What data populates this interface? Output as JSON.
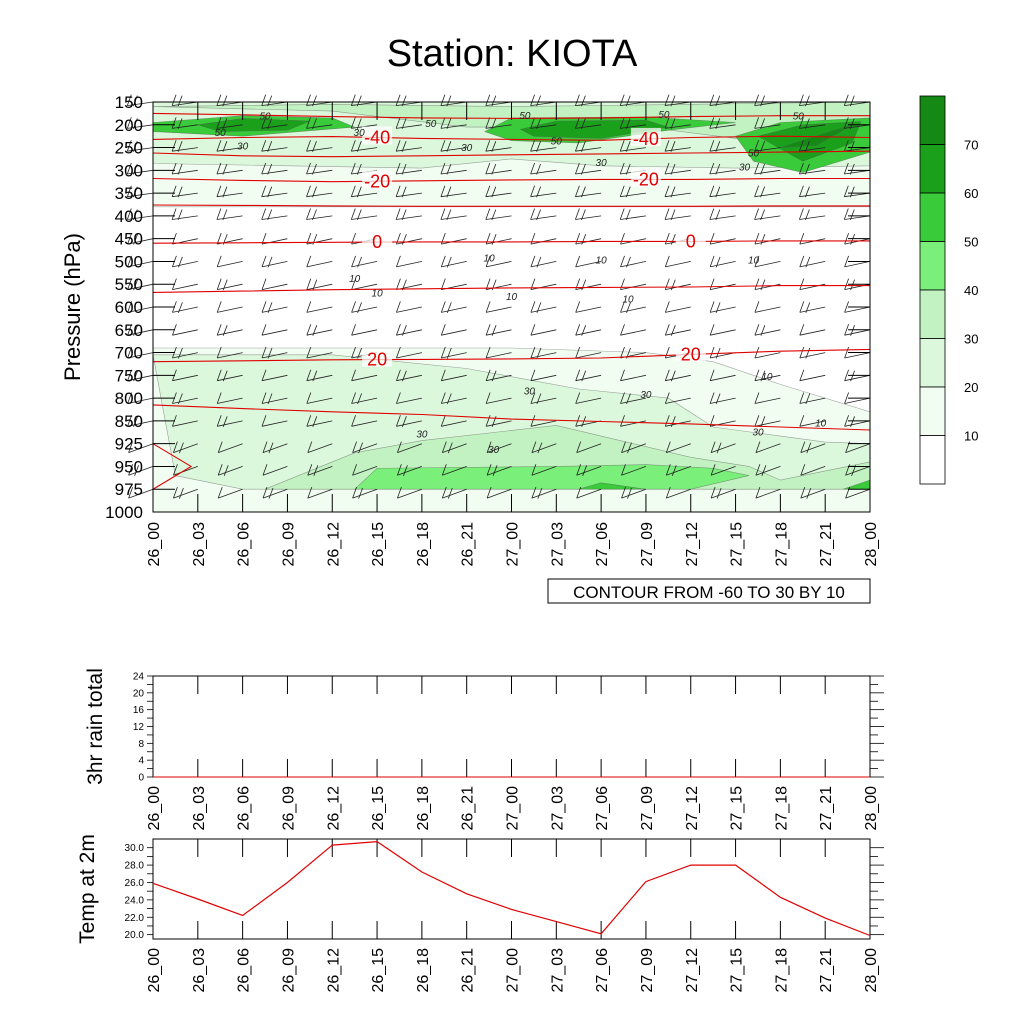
{
  "title": "Station: KIOTA",
  "time_labels": [
    "26_00",
    "26_03",
    "26_06",
    "26_09",
    "26_12",
    "26_15",
    "26_18",
    "26_21",
    "27_00",
    "27_03",
    "27_06",
    "27_09",
    "27_12",
    "27_15",
    "27_18",
    "27_21",
    "28_00"
  ],
  "chart_data": [
    {
      "type": "heatmap",
      "ylabel": "Pressure (hPa)",
      "pressure_levels": [
        150,
        200,
        250,
        300,
        350,
        400,
        450,
        500,
        550,
        600,
        650,
        700,
        750,
        800,
        850,
        925,
        950,
        975,
        1000
      ],
      "contour_info": "CONTOUR FROM -60 TO 30 BY 10",
      "shading_scale": {
        "levels": [
          10,
          20,
          30,
          40,
          50,
          60,
          70
        ],
        "colors": [
          "#ffffff",
          "#f2fdf2",
          "#dcf8dc",
          "#c2f2c2",
          "#7af07a",
          "#3acb3a",
          "#1aa01a",
          "#148a14"
        ]
      },
      "temperature_contour_labels": [
        {
          "value": "-40",
          "times": [
            "26_15",
            "27_09"
          ]
        },
        {
          "value": "-20",
          "times": [
            "26_15",
            "27_09"
          ]
        },
        {
          "value": "0",
          "times": [
            "26_15",
            "27_12"
          ]
        },
        {
          "value": "20",
          "times": [
            "26_15",
            "27_12"
          ]
        }
      ],
      "temperature_contours": [
        {
          "value": -50,
          "p": [
            175,
            178,
            182,
            185,
            186,
            185,
            182,
            180,
            180
          ]
        },
        {
          "value": -40,
          "p": [
            232,
            228,
            226,
            230,
            232,
            234,
            228,
            225,
            228
          ]
        },
        {
          "value": -30,
          "p": [
            262,
            268,
            270,
            268,
            266,
            264,
            262,
            260,
            258
          ]
        },
        {
          "value": -20,
          "p": [
            318,
            322,
            325,
            323,
            321,
            320,
            320,
            318,
            318
          ]
        },
        {
          "value": -10,
          "p": [
            376,
            377,
            378,
            379,
            379,
            379,
            379,
            378,
            378
          ]
        },
        {
          "value": 0,
          "p": [
            460,
            459,
            458,
            457,
            457,
            456,
            456,
            455,
            455
          ]
        },
        {
          "value": 10,
          "p": [
            568,
            565,
            562,
            560,
            558,
            557,
            556,
            553,
            553
          ]
        },
        {
          "value": 20,
          "p": [
            720,
            718,
            716,
            715,
            714,
            712,
            704,
            697,
            693
          ]
        },
        {
          "value": 30,
          "p": [
            815,
            823,
            830,
            836,
            846,
            852,
            860,
            870,
            880
          ]
        }
      ],
      "wind_speed_contour_labels": [
        "10",
        "30",
        "50"
      ],
      "wind_speed_regions": [
        {
          "level": 10,
          "poly": [
            [
              0,
              165
            ],
            [
              16,
              168
            ],
            [
              16,
              380
            ],
            [
              0,
              380
            ]
          ]
        },
        {
          "level": 20,
          "poly": [
            [
              0,
              150
            ],
            [
              16,
              150
            ],
            [
              16,
              290
            ],
            [
              13,
              295
            ],
            [
              10,
              290
            ],
            [
              8,
              275
            ],
            [
              6,
              295
            ],
            [
              3,
              290
            ],
            [
              0,
              285
            ]
          ]
        },
        {
          "level": 30,
          "poly": [
            [
              0,
              160
            ],
            [
              4,
              170
            ],
            [
              7,
              205
            ],
            [
              11,
              205
            ],
            [
              13,
              230
            ],
            [
              15,
              215
            ],
            [
              16,
              210
            ],
            [
              16,
              150
            ],
            [
              12,
              155
            ],
            [
              8,
              160
            ],
            [
              4,
              155
            ]
          ]
        },
        {
          "level": 50,
          "poly": [
            [
              0,
              195
            ],
            [
              2,
              180
            ],
            [
              4,
              185
            ],
            [
              4.5,
              205
            ],
            [
              2,
              225
            ],
            [
              0,
              215
            ]
          ]
        },
        {
          "level": 50,
          "poly": [
            [
              7.4,
              215
            ],
            [
              8,
              185
            ],
            [
              11,
              183
            ],
            [
              13,
              195
            ],
            [
              11.5,
              212
            ],
            [
              9.5,
              240
            ],
            [
              8,
              235
            ]
          ]
        },
        {
          "level": 50,
          "poly": [
            [
              13,
              225
            ],
            [
              14,
              195
            ],
            [
              16,
              185
            ],
            [
              16,
              260
            ],
            [
              14.5,
              305
            ],
            [
              13.4,
              280
            ]
          ]
        },
        {
          "level": 60,
          "poly": [
            [
              1,
              200
            ],
            [
              2,
              186
            ],
            [
              3.5,
              192
            ],
            [
              3,
              212
            ],
            [
              1.5,
              215
            ]
          ]
        },
        {
          "level": 60,
          "poly": [
            [
              8.2,
              210
            ],
            [
              9,
              192
            ],
            [
              11,
              190
            ],
            [
              11.5,
              205
            ],
            [
              10,
              230
            ],
            [
              8.5,
              225
            ]
          ]
        },
        {
          "level": 60,
          "poly": [
            [
              13.5,
              225
            ],
            [
              14.5,
              200
            ],
            [
              15.8,
              193
            ],
            [
              15.6,
              240
            ],
            [
              14.5,
              280
            ]
          ]
        },
        {
          "level": 70,
          "poly": [
            [
              14,
              250
            ],
            [
              15.6,
              200
            ],
            [
              14.8,
              245
            ]
          ]
        },
        {
          "level": 10,
          "poly": [
            [
              0,
              690
            ],
            [
              8,
              690
            ],
            [
              11,
              700
            ],
            [
              12.5,
              720
            ],
            [
              14,
              770
            ],
            [
              16,
              830
            ],
            [
              16,
              1000
            ],
            [
              0,
              1000
            ]
          ]
        },
        {
          "level": 20,
          "poly": [
            [
              0,
              705
            ],
            [
              4,
              705
            ],
            [
              7,
              735
            ],
            [
              9.5,
              780
            ],
            [
              11.5,
              800
            ],
            [
              12.5,
              870
            ],
            [
              14,
              900
            ],
            [
              15,
              920
            ],
            [
              16,
              925
            ],
            [
              16,
              975
            ],
            [
              2,
              975
            ],
            [
              0.5,
              960
            ]
          ]
        },
        {
          "level": 30,
          "poly": [
            [
              2.5,
              975
            ],
            [
              4.5,
              935
            ],
            [
              6,
              915
            ],
            [
              9,
              865
            ],
            [
              10,
              900
            ],
            [
              12,
              940
            ],
            [
              13.3,
              950
            ],
            [
              14,
              965
            ],
            [
              16,
              945
            ],
            [
              16,
              975
            ]
          ]
        },
        {
          "level": 40,
          "poly": [
            [
              4.5,
              975
            ],
            [
              5,
              952
            ],
            [
              9,
              950
            ],
            [
              11,
              948
            ],
            [
              12.5,
              952
            ],
            [
              13.3,
              960
            ],
            [
              12,
              975
            ]
          ]
        },
        {
          "level": 50,
          "poly": [
            [
              9.5,
              975
            ],
            [
              10,
              968
            ],
            [
              11,
              975
            ]
          ]
        },
        {
          "level": 50,
          "poly": [
            [
              15.4,
              975
            ],
            [
              16,
              965
            ],
            [
              16,
              975
            ]
          ]
        }
      ]
    },
    {
      "type": "line",
      "ylabel": "3hr rain total",
      "ylim": [
        0,
        24
      ],
      "yticks": [
        0,
        4,
        8,
        12,
        16,
        20,
        24
      ],
      "categories": [
        "26_00",
        "26_03",
        "26_06",
        "26_09",
        "26_12",
        "26_15",
        "26_18",
        "26_21",
        "27_00",
        "27_03",
        "27_06",
        "27_09",
        "27_12",
        "27_15",
        "27_18",
        "27_21",
        "28_00"
      ],
      "values": [
        0,
        0,
        0,
        0,
        0,
        0,
        0,
        0,
        0,
        0,
        0,
        0,
        0,
        0,
        0,
        0,
        0
      ],
      "line_color": "#e00000"
    },
    {
      "type": "line",
      "ylabel": "Temp at 2m",
      "ylim": [
        19.5,
        31
      ],
      "yticks": [
        "20.0",
        "22.0",
        "24.0",
        "26.0",
        "28.0",
        "30.0"
      ],
      "categories": [
        "26_00",
        "26_03",
        "26_06",
        "26_09",
        "26_12",
        "26_15",
        "26_18",
        "26_21",
        "27_00",
        "27_03",
        "27_06",
        "27_09",
        "27_12",
        "27_15",
        "27_18",
        "27_21",
        "28_00"
      ],
      "values": [
        25.9,
        24.1,
        22.2,
        26.0,
        30.3,
        30.7,
        27.2,
        24.7,
        22.9,
        21.5,
        20.1,
        26.1,
        28.0,
        28.0,
        24.3,
        21.9,
        19.9
      ],
      "line_color": "#e00000"
    }
  ]
}
